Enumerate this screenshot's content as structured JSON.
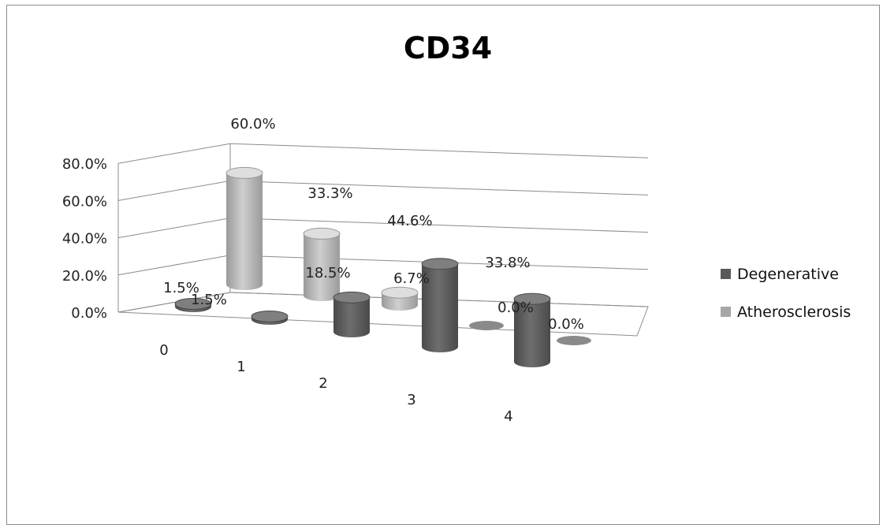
{
  "chart_data": {
    "type": "bar",
    "title": "CD34",
    "categories": [
      "0",
      "1",
      "2",
      "3",
      "4"
    ],
    "series": [
      {
        "name": "Degenerative",
        "values": [
          1.5,
          1.5,
          18.5,
          44.6,
          33.8
        ],
        "labels": [
          "1.5%",
          "1.5%",
          "18.5%",
          "44.6%",
          "33.8%"
        ],
        "color": "#595959"
      },
      {
        "name": "Atherosclerosis",
        "values": [
          60.0,
          33.3,
          6.7,
          0.0,
          0.0
        ],
        "labels": [
          "60.0%",
          "33.3%",
          "6.7%",
          "0.0%",
          "0.0%"
        ],
        "color": "#a6a6a6"
      }
    ],
    "ylim": [
      0,
      80
    ],
    "yticks": [
      "0.0%",
      "20.0%",
      "40.0%",
      "60.0%",
      "80.0%"
    ],
    "grid": true,
    "legend": "right"
  }
}
